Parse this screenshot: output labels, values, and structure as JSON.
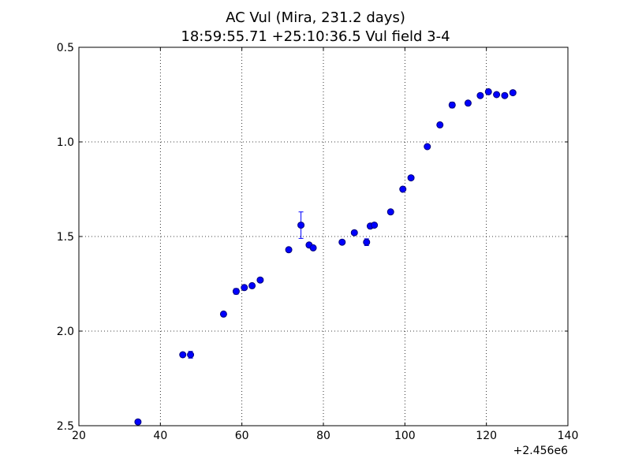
{
  "chart_data": {
    "type": "scatter",
    "title": "AC Vul (Mira, 231.2 days)",
    "subtitle": "18:59:55.71 +25:10:36.5 Vul field 3-4",
    "xlabel": "",
    "ylabel": "",
    "x_offset_label": "+2.456e6",
    "xlim": [
      20,
      140
    ],
    "ylim": [
      0.5,
      2.5
    ],
    "y_inverted": true,
    "x_ticks": [
      20,
      40,
      60,
      80,
      100,
      120,
      140
    ],
    "y_ticks": [
      0.5,
      1.0,
      1.5,
      2.0,
      2.5
    ],
    "x_tick_labels": [
      "20",
      "40",
      "60",
      "80",
      "100",
      "120",
      "140"
    ],
    "y_tick_labels": [
      "0.5",
      "1.0",
      "1.5",
      "2.0",
      "2.5"
    ],
    "grid": true,
    "marker_color": "#0000ff",
    "marker_edge_color": "#00007a",
    "points": [
      {
        "x": 34.5,
        "y": 2.48,
        "err": 0.008
      },
      {
        "x": 45.5,
        "y": 2.125,
        "err": 0.012
      },
      {
        "x": 47.4,
        "y": 2.125,
        "err": 0.018
      },
      {
        "x": 55.5,
        "y": 1.91,
        "err": 0.01
      },
      {
        "x": 58.6,
        "y": 1.79,
        "err": 0.015
      },
      {
        "x": 60.6,
        "y": 1.77,
        "err": 0.01
      },
      {
        "x": 62.5,
        "y": 1.76,
        "err": 0.01
      },
      {
        "x": 64.5,
        "y": 1.73,
        "err": 0.01
      },
      {
        "x": 71.5,
        "y": 1.57,
        "err": 0.01
      },
      {
        "x": 74.5,
        "y": 1.44,
        "err": 0.07
      },
      {
        "x": 76.5,
        "y": 1.545,
        "err": 0.01
      },
      {
        "x": 77.5,
        "y": 1.56,
        "err": 0.01
      },
      {
        "x": 84.6,
        "y": 1.53,
        "err": 0.01
      },
      {
        "x": 87.6,
        "y": 1.48,
        "err": 0.01
      },
      {
        "x": 90.6,
        "y": 1.53,
        "err": 0.018
      },
      {
        "x": 91.5,
        "y": 1.445,
        "err": 0.01
      },
      {
        "x": 92.5,
        "y": 1.44,
        "err": 0.01
      },
      {
        "x": 96.5,
        "y": 1.37,
        "err": 0.01
      },
      {
        "x": 99.5,
        "y": 1.25,
        "err": 0.01
      },
      {
        "x": 101.5,
        "y": 1.19,
        "err": 0.01
      },
      {
        "x": 105.5,
        "y": 1.025,
        "err": 0.01
      },
      {
        "x": 108.6,
        "y": 0.91,
        "err": 0.01
      },
      {
        "x": 111.6,
        "y": 0.805,
        "err": 0.015
      },
      {
        "x": 115.5,
        "y": 0.795,
        "err": 0.01
      },
      {
        "x": 118.5,
        "y": 0.755,
        "err": 0.01
      },
      {
        "x": 120.5,
        "y": 0.735,
        "err": 0.01
      },
      {
        "x": 122.5,
        "y": 0.75,
        "err": 0.01
      },
      {
        "x": 124.5,
        "y": 0.755,
        "err": 0.01
      },
      {
        "x": 126.5,
        "y": 0.74,
        "err": 0.01
      }
    ]
  }
}
